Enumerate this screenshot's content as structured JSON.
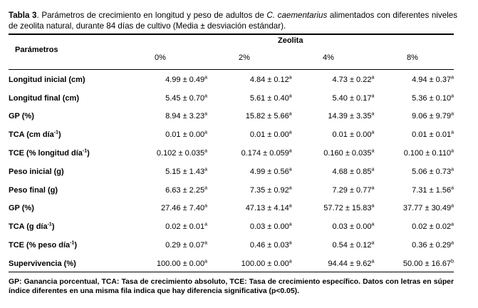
{
  "caption": {
    "label": "Tabla 3",
    "text_before_species": ". Parámetros de crecimiento en longitud y peso de adultos de ",
    "species": "C. caementarius",
    "text_after_species": " alimentados con diferentes niveles de zeolita natural, durante 84 días de cultivo (Media ± desviación estándar)."
  },
  "header": {
    "param_label": "Parámetros",
    "group_label": "Zeolita",
    "levels": [
      "0%",
      "2%",
      "4%",
      "8%"
    ]
  },
  "rows": [
    {
      "label": "Longitud inicial (cm)",
      "label_sup": "",
      "label_suffix": "",
      "cells": [
        {
          "v": "4.99 ± 0.49",
          "s": "a"
        },
        {
          "v": "4.84 ± 0.12",
          "s": "a"
        },
        {
          "v": "4.73 ± 0.22",
          "s": "a"
        },
        {
          "v": "4.94 ± 0.37",
          "s": "a"
        }
      ]
    },
    {
      "label": "Longitud final (cm)",
      "label_sup": "",
      "label_suffix": "",
      "cells": [
        {
          "v": "5.45 ± 0.70",
          "s": "a"
        },
        {
          "v": "5.61 ± 0.40",
          "s": "a"
        },
        {
          "v": "5.40 ± 0.17",
          "s": "a"
        },
        {
          "v": "5.36 ± 0.10",
          "s": "a"
        }
      ]
    },
    {
      "label": "GP (%)",
      "label_sup": "",
      "label_suffix": "",
      "cells": [
        {
          "v": "8.94 ± 3.23",
          "s": "a"
        },
        {
          "v": "15.82 ± 5.66",
          "s": "a"
        },
        {
          "v": "14.39 ± 3.35",
          "s": "a"
        },
        {
          "v": "9.06 ± 9.79",
          "s": "a"
        }
      ]
    },
    {
      "label": "TCA (cm día",
      "label_sup": "-1",
      "label_suffix": ")",
      "cells": [
        {
          "v": "0.01 ± 0.00",
          "s": "a"
        },
        {
          "v": "0.01 ± 0.00",
          "s": "a"
        },
        {
          "v": "0.01 ± 0.00",
          "s": "a"
        },
        {
          "v": "0.01 ± 0.01",
          "s": "a"
        }
      ]
    },
    {
      "label": "TCE (% longitud día",
      "label_sup": "-1",
      "label_suffix": ")",
      "cells": [
        {
          "v": "0.102 ± 0.035",
          "s": "a"
        },
        {
          "v": "0.174 ± 0.059",
          "s": "a"
        },
        {
          "v": "0.160 ± 0.035",
          "s": "a"
        },
        {
          "v": "0.100 ± 0.110",
          "s": "a"
        }
      ]
    },
    {
      "label": "Peso inicial (g)",
      "label_sup": "",
      "label_suffix": "",
      "cells": [
        {
          "v": "5.15 ± 1.43",
          "s": "a"
        },
        {
          "v": "4.99 ± 0.56",
          "s": "a"
        },
        {
          "v": "4.68 ± 0.85",
          "s": "a"
        },
        {
          "v": "5.06 ± 0.73",
          "s": "a"
        }
      ]
    },
    {
      "label": "Peso final (g)",
      "label_sup": "",
      "label_suffix": "",
      "cells": [
        {
          "v": "6.63 ± 2.25",
          "s": "a"
        },
        {
          "v": "7.35 ± 0.92",
          "s": "a"
        },
        {
          "v": "7.29 ± 0.77",
          "s": "a"
        },
        {
          "v": "7.31 ± 1.56",
          "s": "a"
        }
      ]
    },
    {
      "label": "GP (%)",
      "label_sup": "",
      "label_suffix": "",
      "cells": [
        {
          "v": "27.46 ± 7.40",
          "s": "a"
        },
        {
          "v": "47.13 ± 4.14",
          "s": "a"
        },
        {
          "v": "57.72 ± 15.83",
          "s": "a"
        },
        {
          "v": "37.77 ± 30.49",
          "s": "a"
        }
      ]
    },
    {
      "label": "TCA (g día",
      "label_sup": "-1",
      "label_suffix": ")",
      "cells": [
        {
          "v": "0.02 ± 0.01",
          "s": "a"
        },
        {
          "v": "0.03 ± 0.00",
          "s": "a"
        },
        {
          "v": "0.03 ± 0.00",
          "s": "a"
        },
        {
          "v": "0.02 ± 0.02",
          "s": "a"
        }
      ]
    },
    {
      "label": "TCE (% peso día",
      "label_sup": "-1",
      "label_suffix": ")",
      "cells": [
        {
          "v": "0.29 ± 0.07",
          "s": "a"
        },
        {
          "v": "0.46 ± 0.03",
          "s": "a"
        },
        {
          "v": "0.54 ± 0.12",
          "s": "a"
        },
        {
          "v": "0.36 ± 0.29",
          "s": "a"
        }
      ]
    },
    {
      "label": "Supervivencia (%)",
      "label_sup": "",
      "label_suffix": "",
      "cells": [
        {
          "v": "100.00 ± 0.00",
          "s": "a"
        },
        {
          "v": "100.00 ± 0.00",
          "s": "a"
        },
        {
          "v": "94.44 ± 9.62",
          "s": "a"
        },
        {
          "v": "50.00 ± 16.67",
          "s": "b"
        }
      ]
    }
  ],
  "footnote": "GP: Ganancia porcentual, TCA: Tasa de crecimiento absoluto, TCE: Tasa de crecimiento específico. Datos con letras en súper índice diferentes en una misma fila indica que hay diferencia significativa (p<0.05)."
}
